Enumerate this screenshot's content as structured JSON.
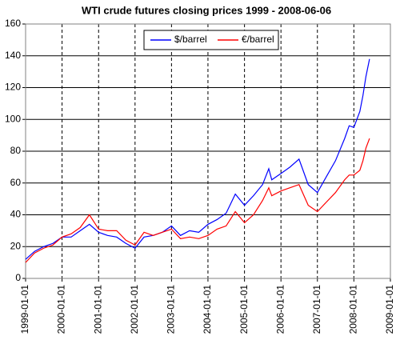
{
  "chart_data": {
    "type": "line",
    "title": "WTI crude futures closing prices 1999 - 2008-06-06",
    "x": [
      "1999-01-01",
      "1999-04-01",
      "1999-07-01",
      "1999-10-01",
      "2000-01-01",
      "2000-04-01",
      "2000-07-01",
      "2000-10-01",
      "2001-01-01",
      "2001-04-01",
      "2001-07-01",
      "2001-10-01",
      "2002-01-01",
      "2002-04-01",
      "2002-07-01",
      "2002-10-01",
      "2003-01-01",
      "2003-04-01",
      "2003-07-01",
      "2003-10-01",
      "2004-01-01",
      "2004-04-01",
      "2004-07-01",
      "2004-10-01",
      "2005-01-01",
      "2005-04-01",
      "2005-07-01",
      "2005-09-01",
      "2005-10-01",
      "2006-01-01",
      "2006-04-01",
      "2006-07-01",
      "2006-10-01",
      "2007-01-01",
      "2007-04-01",
      "2007-07-01",
      "2007-10-01",
      "2007-11-15",
      "2008-01-01",
      "2008-03-01",
      "2008-04-01",
      "2008-05-01",
      "2008-06-06"
    ],
    "series": [
      {
        "name": "$/barrel",
        "color": "#0000ff",
        "values": [
          12,
          17,
          20,
          22,
          26,
          26,
          30,
          34,
          29,
          27,
          26,
          22,
          19,
          26,
          27,
          29,
          33,
          27,
          30,
          29,
          34,
          37,
          41,
          53,
          46,
          52,
          59,
          69,
          62,
          66,
          70,
          75,
          59,
          54,
          64,
          74,
          88,
          96,
          95,
          105,
          115,
          127,
          138
        ]
      },
      {
        "name": "€/barrel",
        "color": "#ff0000",
        "values": [
          10,
          16,
          19,
          21,
          26,
          28,
          32,
          40,
          31,
          30,
          30,
          24,
          21,
          29,
          27,
          29,
          31,
          25,
          26,
          25,
          27,
          31,
          33,
          42,
          35,
          40,
          49,
          57,
          52,
          55,
          57,
          59,
          46,
          42,
          48,
          54,
          62,
          65,
          65,
          68,
          74,
          82,
          88
        ]
      }
    ],
    "xlim": [
      "1999-01-01",
      "2009-01-01"
    ],
    "xticks": [
      "1999-01-01",
      "2000-01-01",
      "2001-01-01",
      "2002-01-01",
      "2003-01-01",
      "2004-01-01",
      "2005-01-01",
      "2006-01-01",
      "2007-01-01",
      "2008-01-01",
      "2009-01-01"
    ],
    "ylim": [
      0,
      160
    ],
    "yticks": [
      0,
      20,
      40,
      60,
      80,
      100,
      120,
      140,
      160
    ],
    "grid": true,
    "legend": "top"
  }
}
